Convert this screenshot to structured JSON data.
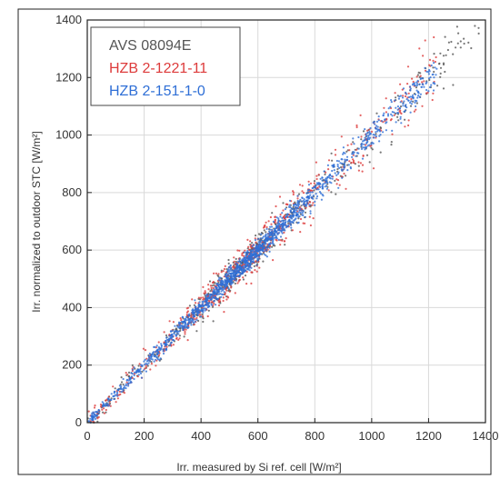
{
  "chart_data": {
    "type": "scatter",
    "title": "",
    "xlabel": "Irr. measured by Si ref. cell [W/m²]",
    "ylabel": "Irr. normalized to outdoor STC [W/m²]",
    "xlim": [
      0,
      1400
    ],
    "ylim": [
      0,
      1400
    ],
    "xticks": [
      0,
      200,
      400,
      600,
      800,
      1000,
      1200,
      1400
    ],
    "yticks": [
      0,
      200,
      400,
      600,
      800,
      1000,
      1200,
      1400
    ],
    "grid": true,
    "legend_position": "top-left",
    "series": [
      {
        "name": "AVS 08094E",
        "color": "#555555",
        "x_range": [
          0,
          1380
        ],
        "trend": {
          "slope": 1.0,
          "intercept": 0
        },
        "scatter": "about ±40 W/m² around the 1:1 line"
      },
      {
        "name": "HZB 2-1221-11",
        "color": "#dd3b3b",
        "x_range": [
          0,
          1230
        ],
        "trend": {
          "slope": 1.0,
          "intercept": 0
        },
        "scatter": "about ±50 W/m² around the 1:1 line"
      },
      {
        "name": "HZB 2-151-1-0",
        "color": "#2f6fd6",
        "x_range": [
          0,
          1230
        ],
        "trend": {
          "slope": 1.0,
          "intercept": 0
        },
        "scatter": "about ±35 W/m² around the 1:1 line"
      }
    ]
  }
}
